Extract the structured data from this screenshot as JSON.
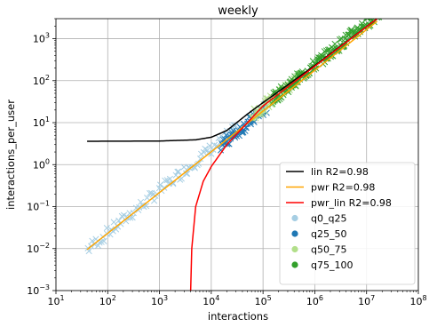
{
  "chart_data": {
    "type": "scatter",
    "title": "weekly",
    "xlabel": "interactions",
    "ylabel": "interactions_per_user",
    "xscale": "log",
    "yscale": "log",
    "xlim": [
      10,
      100000000
    ],
    "ylim": [
      0.001,
      3000
    ],
    "x_ticks": [
      {
        "value": 10,
        "base": "10",
        "exp": "1"
      },
      {
        "value": 100,
        "base": "10",
        "exp": "2"
      },
      {
        "value": 1000,
        "base": "10",
        "exp": "3"
      },
      {
        "value": 10000,
        "base": "10",
        "exp": "4"
      },
      {
        "value": 100000,
        "base": "10",
        "exp": "5"
      },
      {
        "value": 1000000,
        "base": "10",
        "exp": "6"
      },
      {
        "value": 10000000,
        "base": "10",
        "exp": "7"
      },
      {
        "value": 100000000,
        "base": "10",
        "exp": "8"
      }
    ],
    "y_ticks": [
      {
        "value": 0.001,
        "base": "10",
        "exp": "−3"
      },
      {
        "value": 0.01,
        "base": "10",
        "exp": "−2"
      },
      {
        "value": 0.1,
        "base": "10",
        "exp": "−1"
      },
      {
        "value": 1,
        "base": "10",
        "exp": "0"
      },
      {
        "value": 10,
        "base": "10",
        "exp": "1"
      },
      {
        "value": 100,
        "base": "10",
        "exp": "2"
      },
      {
        "value": 1000,
        "base": "10",
        "exp": "3"
      }
    ],
    "grid": true,
    "legend_position": "lower-right",
    "fit_lines": [
      {
        "name": "lin R2=0.98",
        "color": "#000000",
        "points": [
          [
            40,
            3.6
          ],
          [
            1000,
            3.65
          ],
          [
            5000,
            3.9
          ],
          [
            10000,
            4.5
          ],
          [
            20000,
            6.5
          ],
          [
            50000,
            16
          ],
          [
            100000,
            30
          ],
          [
            1000000,
            230
          ],
          [
            16000000,
            3000
          ]
        ]
      },
      {
        "name": "pwr R2=0.98",
        "color": "#ffa500",
        "points": [
          [
            40,
            0.0095
          ],
          [
            16000000,
            2600
          ]
        ]
      },
      {
        "name": "pwr_lin R2=0.98",
        "color": "#ff0000",
        "points": [
          [
            4000,
            0.001
          ],
          [
            4200,
            0.01
          ],
          [
            5000,
            0.1
          ],
          [
            7000,
            0.4
          ],
          [
            10000,
            0.9
          ],
          [
            20000,
            3
          ],
          [
            50000,
            10
          ],
          [
            100000,
            25
          ],
          [
            1000000,
            220
          ],
          [
            16000000,
            3000
          ]
        ]
      }
    ],
    "scatter_series": [
      {
        "name": "q0_q25",
        "color": "#a6cee3",
        "x_range": [
          40,
          30000
        ],
        "y_at_x0": 0.0095,
        "count": 90
      },
      {
        "name": "q25_50",
        "color": "#1f78b4",
        "x_range": [
          15000,
          120000
        ],
        "y_at_x0": 3.5,
        "count": 60
      },
      {
        "name": "q50_75",
        "color": "#b2df8a",
        "x_range": [
          60000,
          600000
        ],
        "y_at_x0": 15,
        "count": 70
      },
      {
        "name": "q75_100",
        "color": "#33a02c",
        "x_range": [
          150000,
          18000000
        ],
        "y_at_x0": 40,
        "count": 150
      }
    ]
  }
}
